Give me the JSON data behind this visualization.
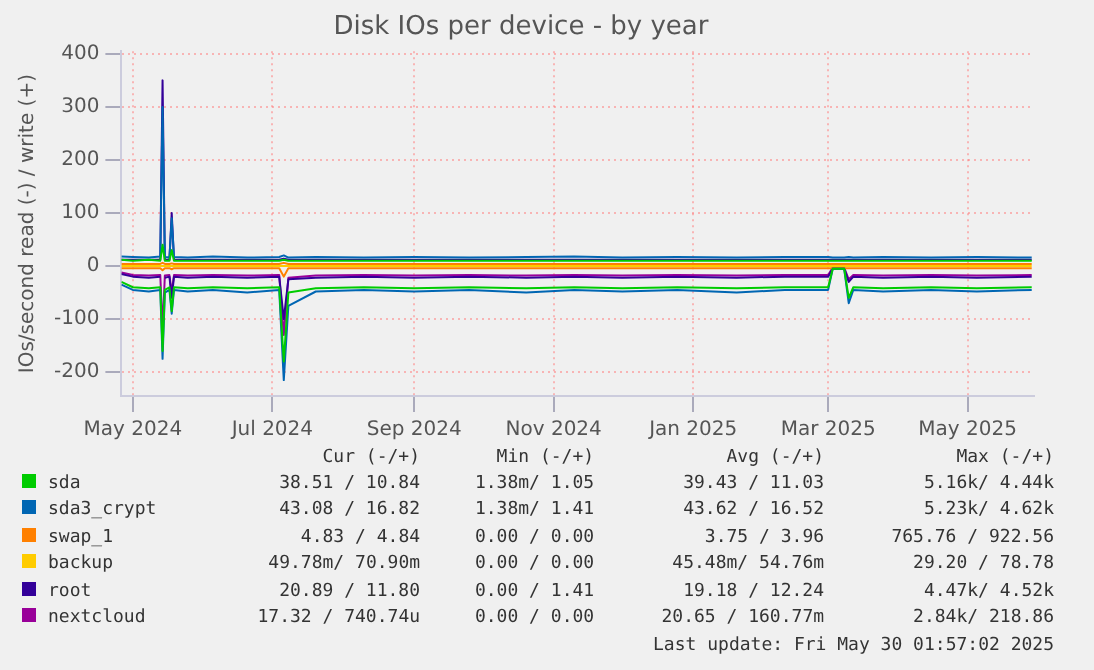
{
  "chart_data": {
    "type": "line",
    "title": "Disk IOs per device - by year",
    "ylabel": "IOs/second read (-) / write (+)",
    "x": [
      "2024-04-26",
      "2024-05-01",
      "2024-05-08",
      "2024-05-13",
      "2024-05-14",
      "2024-05-15",
      "2024-05-17",
      "2024-05-18",
      "2024-05-19",
      "2024-05-25",
      "2024-06-05",
      "2024-06-20",
      "2024-07-04",
      "2024-07-06",
      "2024-07-08",
      "2024-07-20",
      "2024-08-10",
      "2024-09-01",
      "2024-09-25",
      "2024-10-20",
      "2024-11-10",
      "2024-12-01",
      "2024-12-25",
      "2025-01-20",
      "2025-02-10",
      "2025-03-01",
      "2025-03-03",
      "2025-03-08",
      "2025-03-10",
      "2025-03-12",
      "2025-03-25",
      "2025-04-15",
      "2025-05-05",
      "2025-05-29"
    ],
    "xlim": [
      "2024-04-26",
      "2025-05-30"
    ],
    "xticks": [
      {
        "value": "2024-05-01",
        "label": "May 2024"
      },
      {
        "value": "2024-07-01",
        "label": "Jul 2024"
      },
      {
        "value": "2024-09-01",
        "label": "Sep 2024"
      },
      {
        "value": "2024-11-01",
        "label": "Nov 2024"
      },
      {
        "value": "2025-01-01",
        "label": "Jan 2025"
      },
      {
        "value": "2025-03-01",
        "label": "Mar 2025"
      },
      {
        "value": "2025-05-01",
        "label": "May 2025"
      }
    ],
    "ylim": [
      -245,
      405
    ],
    "yticks": [
      -200,
      -100,
      0,
      100,
      200,
      300,
      400
    ],
    "grid": true,
    "legend": "bottom",
    "marker": "none",
    "line_style": "solid",
    "series": [
      {
        "name": "sda",
        "color": "#00cc00",
        "values": [
          12,
          10,
          12,
          10,
          40,
          10,
          10,
          30,
          10,
          10,
          10,
          10,
          10,
          12,
          10,
          10,
          10,
          10,
          10,
          10,
          10,
          10,
          10,
          10,
          10,
          10,
          10,
          10,
          10,
          10,
          10,
          10,
          10,
          10
        ]
      },
      {
        "color": "#00cc00",
        "values": [
          -30,
          -40,
          -42,
          -40,
          -160,
          -45,
          -40,
          -85,
          -40,
          -42,
          -40,
          -42,
          -40,
          -180,
          -50,
          -42,
          -40,
          -42,
          -40,
          -42,
          -40,
          -42,
          -40,
          -42,
          -40,
          -40,
          -5,
          -5,
          -60,
          -40,
          -42,
          -40,
          -42,
          -40
        ]
      },
      {
        "name": "sda3_crypt",
        "color": "#0066b3",
        "values": [
          18,
          17,
          16,
          18,
          300,
          17,
          16,
          90,
          17,
          16,
          18,
          16,
          17,
          20,
          16,
          17,
          16,
          17,
          16,
          17,
          18,
          16,
          17,
          16,
          17,
          17,
          16,
          16,
          17,
          16,
          17,
          16,
          17,
          16
        ]
      },
      {
        "color": "#0066b3",
        "values": [
          -35,
          -45,
          -48,
          -45,
          -175,
          -50,
          -45,
          -90,
          -45,
          -48,
          -45,
          -50,
          -45,
          -215,
          -75,
          -48,
          -45,
          -48,
          -45,
          -50,
          -45,
          -48,
          -45,
          -50,
          -45,
          -45,
          -5,
          -5,
          -70,
          -45,
          -48,
          -45,
          -48,
          -45
        ]
      },
      {
        "name": "swap_1",
        "color": "#ff8000",
        "values": [
          4,
          4,
          4,
          4,
          6,
          4,
          4,
          5,
          4,
          4,
          4,
          4,
          4,
          6,
          4,
          4,
          4,
          4,
          4,
          4,
          4,
          4,
          4,
          4,
          4,
          4,
          4,
          4,
          4,
          4,
          4,
          4,
          4,
          4
        ]
      },
      {
        "color": "#ff8000",
        "values": [
          -4,
          -4,
          -4,
          -4,
          -8,
          -4,
          -4,
          -6,
          -4,
          -4,
          -4,
          -4,
          -4,
          -20,
          -4,
          -4,
          -4,
          -4,
          -4,
          -4,
          -4,
          -4,
          -4,
          -4,
          -4,
          -4,
          -4,
          -4,
          -4,
          -4,
          -4,
          -4,
          -4,
          -4
        ]
      },
      {
        "name": "backup",
        "color": "#ffcc00",
        "values": [
          0,
          0,
          0,
          0,
          0,
          0,
          0,
          0,
          0,
          0,
          0,
          0,
          0,
          0,
          0,
          0,
          0,
          0,
          0,
          0,
          0,
          0,
          0,
          0,
          0,
          0,
          0,
          0,
          0,
          0,
          0,
          0,
          0,
          0
        ]
      },
      {
        "name": "root",
        "color": "#330099",
        "values": [
          12,
          12,
          12,
          12,
          350,
          12,
          12,
          100,
          12,
          12,
          12,
          12,
          12,
          14,
          12,
          12,
          12,
          12,
          12,
          12,
          12,
          12,
          12,
          12,
          12,
          12,
          12,
          12,
          12,
          12,
          12,
          12,
          12,
          12
        ]
      },
      {
        "color": "#330099",
        "values": [
          -15,
          -20,
          -22,
          -20,
          null,
          -22,
          -20,
          -60,
          -20,
          -22,
          -20,
          -22,
          -20,
          -100,
          -25,
          -22,
          -20,
          -22,
          -20,
          -22,
          -20,
          -22,
          -20,
          -22,
          -20,
          -20,
          -5,
          -5,
          -30,
          -20,
          -22,
          -20,
          -22,
          -20
        ]
      },
      {
        "name": "nextcloud",
        "color": "#990099",
        "values": [
          -12,
          -17,
          -18,
          -17,
          -120,
          -18,
          -17,
          -50,
          -17,
          -18,
          -17,
          -18,
          -17,
          -130,
          -22,
          -18,
          -17,
          -18,
          -17,
          -18,
          -17,
          -18,
          -17,
          -18,
          -17,
          -17,
          -3,
          -3,
          -25,
          -17,
          -18,
          -17,
          -18,
          -17
        ]
      }
    ],
    "annotations": [
      "Cur (-/+)",
      "Min (-/+)",
      "Avg (-/+)",
      "Max (-/+)",
      "38.51 / 10.84",
      "1.38m/ 1.05",
      "39.43 / 11.03",
      "5.16k/ 4.44k",
      "43.08 / 16.82",
      "1.38m/ 1.41",
      "43.62 / 16.52",
      "5.23k/ 4.62k",
      "4.83 / 4.84",
      "0.00 / 0.00",
      "3.75 / 3.96",
      "765.76 / 922.56",
      "49.78m/ 70.90m",
      "0.00 / 0.00",
      "45.48m/ 54.76m",
      "29.20 / 78.78",
      "20.89 / 11.80",
      "0.00 / 1.41",
      "19.18 / 12.24",
      "4.47k/ 4.52k",
      "17.32 / 740.74u",
      "0.00 / 0.00",
      "20.65 / 160.77m",
      "2.84k/ 218.86",
      "Last update: Fri May 30 01:57:02 2025"
    ]
  }
}
